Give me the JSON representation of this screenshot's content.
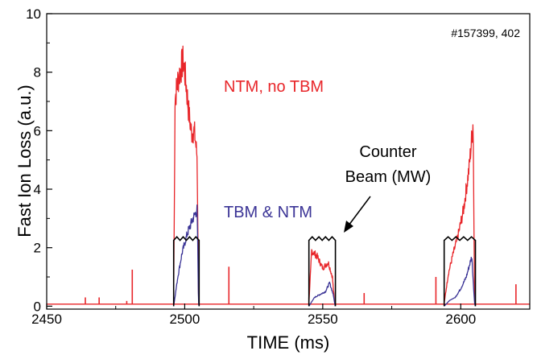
{
  "chart_data": {
    "type": "line",
    "xlabel": "TIME (ms)",
    "ylabel": "Fast Ion Loss (a.u.)",
    "xlim": [
      2450,
      2625
    ],
    "ylim": [
      -0.1,
      10
    ],
    "xticks": [
      2450,
      2500,
      2550,
      2600
    ],
    "yticks": [
      0,
      2,
      4,
      6,
      8,
      10
    ],
    "grid": false,
    "legend": "none (inline labels)",
    "annotations": {
      "shot_label": "#157399, 402",
      "red_label": "NTM, no TBM",
      "blue_label": "TBM & NTM",
      "beam_label_line1": "Counter",
      "beam_label_line2": "Beam (MW)"
    },
    "series": [
      {
        "name": "NTM, no TBM",
        "color": "#e8262a",
        "baseline": 0.07,
        "spikes": [
          [
            2464,
            0.3
          ],
          [
            2469,
            0.3
          ],
          [
            2479,
            0.18
          ],
          [
            2481,
            1.25
          ],
          [
            2516,
            1.35
          ],
          [
            2545,
            0.3
          ],
          [
            2565,
            0.45
          ],
          [
            2591,
            1.0
          ],
          [
            2620,
            0.75
          ]
        ],
        "segments": [
          {
            "x": [
              2496.0,
              2496.5,
              2497.5,
              2498.5,
              2499.5,
              2500.5,
              2501.5,
              2502.5,
              2503.5,
              2504.5,
              2505.0,
              2505.2
            ],
            "y": [
              0.1,
              7.1,
              7.7,
              8.1,
              8.4,
              7.6,
              6.6,
              5.9,
              6.0,
              5.1,
              0.2,
              0.07
            ]
          },
          {
            "x": [
              2545.0,
              2546.0,
              2548.0,
              2550.0,
              2552.0,
              2553.5,
              2554.2,
              2554.5
            ],
            "y": [
              0.1,
              1.9,
              1.7,
              1.3,
              1.5,
              1.0,
              0.2,
              0.07
            ]
          },
          {
            "x": [
              2594.0,
              2595.5,
              2597.0,
              2599.0,
              2601.0,
              2603.0,
              2604.5,
              2605.0,
              2605.3
            ],
            "y": [
              0.1,
              1.1,
              1.7,
              2.4,
              3.3,
              4.7,
              6.3,
              0.2,
              0.07
            ]
          }
        ]
      },
      {
        "name": "TBM & NTM",
        "color": "#3b3496",
        "segments": [
          {
            "x": [
              2496.0,
              2497.5,
              2499.0,
              2501.0,
              2503.0,
              2504.5,
              2505.0,
              2505.2
            ],
            "y": [
              0.0,
              1.0,
              1.8,
              2.5,
              3.0,
              3.3,
              0.1,
              0.0
            ]
          },
          {
            "x": [
              2545.0,
              2547.0,
              2549.0,
              2551.0,
              2552.5,
              2553.8,
              2554.5
            ],
            "y": [
              0.0,
              0.3,
              0.4,
              0.5,
              0.8,
              0.4,
              0.0
            ]
          },
          {
            "x": [
              2594.0,
              2596.0,
              2598.0,
              2600.0,
              2602.0,
              2604.0,
              2605.0,
              2605.3
            ],
            "y": [
              0.0,
              0.2,
              0.3,
              0.6,
              1.0,
              1.7,
              0.1,
              0.0
            ]
          }
        ]
      },
      {
        "name": "Counter Beam (MW)",
        "color": "#000000",
        "pulses": [
          [
            2496.0,
            2505.2,
            2.25
          ],
          [
            2545.0,
            2554.6,
            2.25
          ],
          [
            2594.0,
            2605.3,
            2.25
          ]
        ]
      }
    ]
  }
}
